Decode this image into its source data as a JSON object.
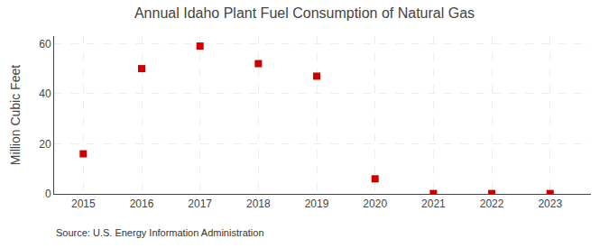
{
  "chart_data": {
    "type": "scatter",
    "title": "Annual Idaho Plant Fuel Consumption of Natural Gas",
    "ylabel": "Million Cubic Feet",
    "annotations": [
      "Source: U.S. Energy Information Administration"
    ],
    "x": [
      2015,
      2016,
      2017,
      2018,
      2019,
      2020,
      2021,
      2022,
      2023
    ],
    "values": [
      16.0,
      50.0,
      59.0,
      52.0,
      47.0,
      6.0,
      0.15,
      0.15,
      0.15
    ],
    "color": "#cc0000",
    "marker": "square",
    "xlim": [
      2014.5,
      2023.7
    ],
    "xticks": [
      2015,
      2016,
      2017,
      2018,
      2019,
      2020,
      2021,
      2022,
      2023
    ],
    "ylim": [
      0,
      63
    ],
    "yticks": [
      0,
      20,
      40,
      60
    ],
    "grid": true
  }
}
